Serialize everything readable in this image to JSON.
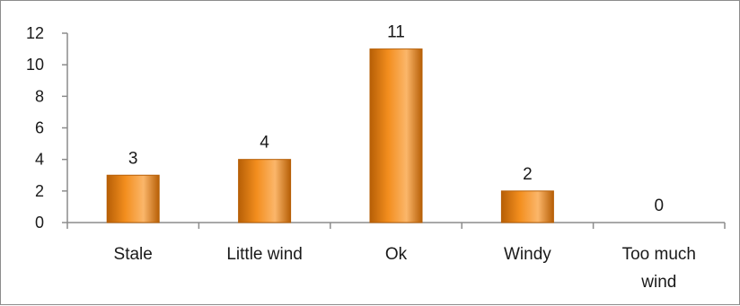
{
  "chart_data": {
    "type": "bar",
    "title": "",
    "xlabel": "",
    "ylabel": "",
    "categories": [
      [
        "Stale"
      ],
      [
        "Little wind"
      ],
      [
        "Ok"
      ],
      [
        "Windy"
      ],
      [
        "Too much",
        "wind"
      ]
    ],
    "values": [
      3,
      4,
      11,
      2,
      0
    ],
    "ylim": [
      0,
      12
    ],
    "yticks": [
      0,
      2,
      4,
      6,
      8,
      10,
      12
    ],
    "grid": false,
    "legend": false,
    "data_labels": true,
    "colors": {
      "bar_light": "#fbb66a",
      "bar_main": "#f38e1e",
      "bar_dark": "#b75f06",
      "axis": "#8c8c8c"
    }
  }
}
